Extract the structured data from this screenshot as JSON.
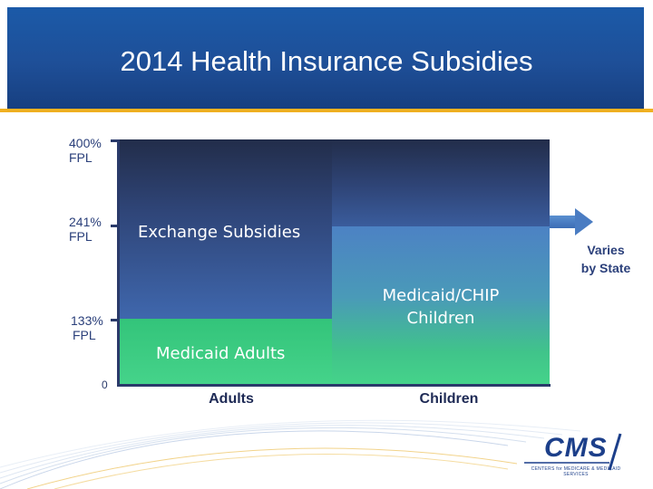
{
  "header": {
    "title": "2014 Health Insurance Subsidies"
  },
  "axis": {
    "levels": [
      {
        "line1": "400%",
        "line2": "FPL"
      },
      {
        "line1": "241%",
        "line2": "FPL"
      },
      {
        "line1": "133%",
        "line2": "FPL"
      }
    ],
    "zero": "0"
  },
  "regions": {
    "exchange": "Exchange Subsidies",
    "medicaid_adults": "Medicaid Adults",
    "medicaid_chip_line1": "Medicaid/CHIP",
    "medicaid_chip_line2": "Children"
  },
  "categories": {
    "adults": "Adults",
    "children": "Children"
  },
  "annotation": {
    "line1": "Varies",
    "line2": "by State"
  },
  "logo": {
    "text": "CMS",
    "subtitle": "CENTERS for MEDICARE & MEDICAID SERVICES"
  },
  "colors": {
    "header_blue": "#1e4f98",
    "accent_gold": "#f0b020",
    "exchange_navy": "#2f4578",
    "medicaid_green": "#45d38a",
    "chip_blue": "#4c82c4",
    "text_navy": "#2a3f7a"
  }
}
